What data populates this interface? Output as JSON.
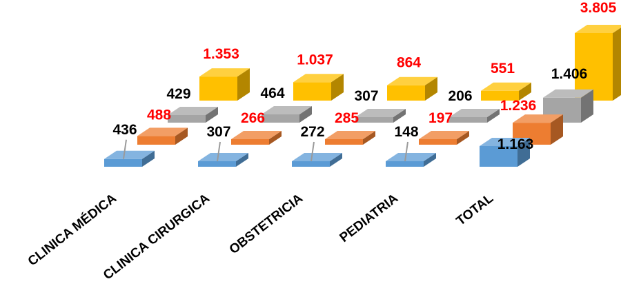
{
  "chart_data": {
    "type": "bar",
    "subtype": "3d-column",
    "categories": [
      "CLINICA MÉDICA",
      "CLINICA CIRURGICA",
      "OBSTETRICIA",
      "PEDIATRIA",
      "TOTAL"
    ],
    "series": [
      {
        "values": [
          436,
          307,
          272,
          148,
          1163
        ],
        "labels": [
          "436",
          "307",
          "272",
          "148",
          "1.163"
        ],
        "color": "#5B9BD5",
        "label_color": "#000000"
      },
      {
        "values": [
          488,
          266,
          285,
          197,
          1236
        ],
        "labels": [
          "488",
          "266",
          "285",
          "197",
          "1.236"
        ],
        "color": "#ED7D31",
        "label_color": "#FF0000"
      },
      {
        "values": [
          429,
          464,
          307,
          206,
          1406
        ],
        "labels": [
          "429",
          "464",
          "307",
          "206",
          "1.406"
        ],
        "color": "#A5A5A5",
        "label_color": "#000000"
      },
      {
        "values": [
          1353,
          1037,
          864,
          551,
          3805
        ],
        "labels": [
          "1.353",
          "1.037",
          "864",
          "551",
          "3.805"
        ],
        "color": "#FFC000",
        "label_color": "#FF0000"
      }
    ],
    "title": "",
    "legend": "none",
    "grid": false
  }
}
